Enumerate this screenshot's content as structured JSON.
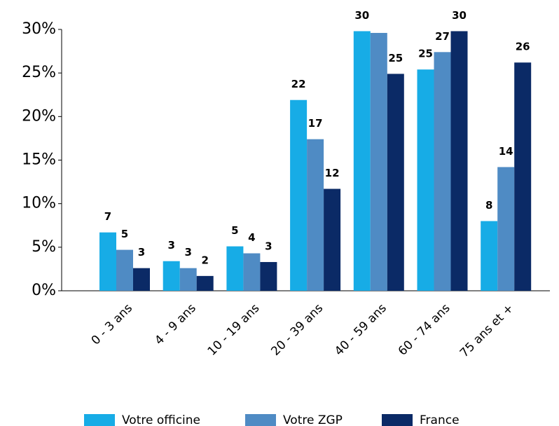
{
  "chart_data": {
    "type": "bar",
    "categories": [
      "0 - 3 ans",
      "4 - 9 ans",
      "10 - 19 ans",
      "20 - 39 ans",
      "40 - 59 ans",
      "60 - 74 ans",
      "75 ans et +"
    ],
    "series": [
      {
        "name": "Votre officine",
        "color": "#17ace6",
        "values": [
          6.7,
          3.4,
          5.1,
          21.9,
          29.8,
          25.4,
          8.0
        ],
        "value_labels": [
          "7",
          "3",
          "5",
          "22",
          "30",
          "25",
          "8"
        ]
      },
      {
        "name": "Votre ZGP",
        "color": "#4f8bc4",
        "values": [
          4.7,
          2.6,
          4.3,
          17.4,
          29.6,
          27.4,
          14.2
        ],
        "value_labels": [
          "5",
          "3",
          "4",
          "17",
          null,
          "27",
          "14"
        ]
      },
      {
        "name": "France",
        "color": "#0b2a66",
        "values": [
          2.6,
          1.7,
          3.3,
          11.7,
          24.9,
          29.8,
          26.2
        ],
        "value_labels": [
          "3",
          "2",
          "3",
          "12",
          "25",
          "30",
          "26"
        ]
      }
    ],
    "ylim": [
      0,
      30
    ],
    "yticks": [
      {
        "value": 0,
        "label": "0%"
      },
      {
        "value": 5,
        "label": "5%"
      },
      {
        "value": 10,
        "label": "10%"
      },
      {
        "value": 15,
        "label": "15%"
      },
      {
        "value": 20,
        "label": "20%"
      },
      {
        "value": 25,
        "label": "25%"
      },
      {
        "value": 30,
        "label": "30%"
      }
    ],
    "legend": "bottom"
  }
}
